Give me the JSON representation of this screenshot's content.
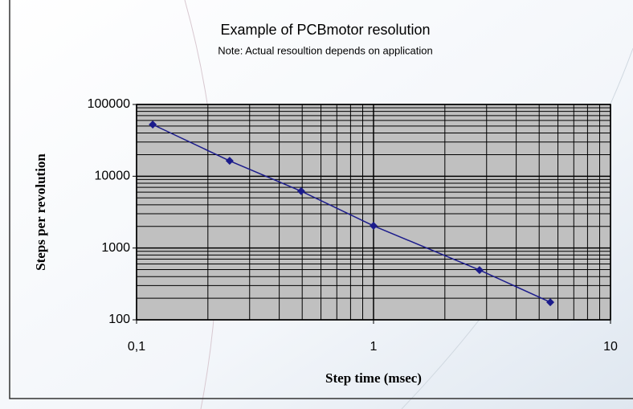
{
  "chart_data": {
    "type": "line",
    "title": "Example of PCBmotor resolution",
    "subtitle": "Note: Actual resoultion depends on application",
    "x_label": "Step time (msec)",
    "y_label": "Steps per revolution",
    "x": [
      0.117,
      0.247,
      0.495,
      1,
      2.8,
      5.57
    ],
    "series": [
      {
        "color": "#1c1c8c",
        "values": [
          52500,
          16400,
          6200,
          2040,
          493,
          176
        ]
      }
    ],
    "xscale": "log",
    "yscale": "log",
    "xlim": [
      0.1,
      10
    ],
    "ylim": [
      100,
      100000
    ],
    "xticks": [
      {
        "value": 0.1,
        "label": "0,1"
      },
      1,
      10
    ],
    "yticks": [
      100,
      1000,
      10000,
      100000
    ],
    "xminorticks": [
      0.2,
      0.3,
      0.4,
      0.5,
      0.6,
      0.7,
      0.8,
      0.9,
      2,
      3,
      4,
      5,
      6,
      7,
      8,
      9
    ],
    "yminorticks": [
      200,
      300,
      400,
      500,
      600,
      700,
      800,
      900,
      2000,
      3000,
      4000,
      5000,
      6000,
      7000,
      8000,
      9000,
      20000,
      30000,
      40000,
      50000,
      60000,
      70000,
      80000,
      90000
    ],
    "grid": true,
    "plot_background": "#c0c0c0"
  }
}
